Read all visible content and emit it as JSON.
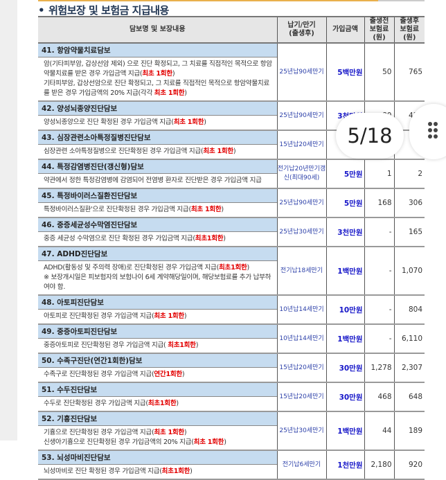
{
  "section_title": "위험보장 및 보험금 지급내용",
  "headers": {
    "name": "담보명 및 보장내용",
    "term": [
      "납기/만기",
      "(출생후)"
    ],
    "amount": "가입금액",
    "pre": [
      "출생전",
      "보험료(원)"
    ],
    "post": [
      "출생후",
      "보험료(원)"
    ]
  },
  "rows": [
    {
      "title": "41. 항암약물치료담보",
      "desc": [
        [
          {
            "t": "암(기타피부암, 갑상선암 제외) 으로 진단 확정되고, 그 치료를 직접적인 목적으로 항암약물치료를 받은 경우 가입금액 지급("
          },
          {
            "t": "최초 1회한",
            "red": true
          },
          {
            "t": ")"
          }
        ],
        [
          {
            "t": "기타피부암, 갑상선암으로 진단 확정되고, 그 치료를 직접적인 목적으로 항암약물치료를 받은 경우 가입금액의 20% 지급(각각 "
          },
          {
            "t": "최초 1회한",
            "red": true
          },
          {
            "t": ")"
          }
        ]
      ],
      "term": "25년납90세만기",
      "amount": "5백만원",
      "pre": "50",
      "post": "765"
    },
    {
      "title": "42. 양성뇌종양진단담보",
      "desc": [
        [
          {
            "t": "양성뇌종양으로 진단 확정된 경우 가입금액 지급("
          },
          {
            "t": "최초 1회한",
            "red": true
          },
          {
            "t": ")"
          }
        ]
      ],
      "term": "25년납90세만기",
      "amount": "3천만원",
      "pre": "80",
      "post": "430"
    },
    {
      "title": "43. 심장관련소아특정질병진단담보",
      "desc": [
        [
          {
            "t": "심장관련 소아특정질병으로 진단확정된 경우 가입금액 지급("
          },
          {
            "t": "최초 1회한",
            "red": true
          },
          {
            "t": ")"
          }
        ]
      ],
      "term": "15년납20세만기",
      "amount": "",
      "pre": "",
      "post": ""
    },
    {
      "title": "44. 특정감염병진단(갱신형)담보",
      "desc": [
        [
          {
            "t": "약관에서 정한 특정감염병에 감염되어 전염병 환자로 진단받은 경우 가입금액 지급"
          }
        ]
      ],
      "term": "전기납20년만기갱신(최대90세)",
      "amount": "5만원",
      "pre": "1",
      "post": "2"
    },
    {
      "title": "45. 특정바이러스질환진단담보",
      "desc": [
        [
          {
            "t": "특정바이러스질환'으로 진단확정된 경우  가입금액 지급("
          },
          {
            "t": "최초 1회한",
            "red": true
          },
          {
            "t": ")"
          }
        ]
      ],
      "term": "25년납90세만기",
      "amount": "5만원",
      "pre": "168",
      "post": "306"
    },
    {
      "title": "46. 중증세균성수막염진단담보",
      "desc": [
        [
          {
            "t": "중증 세균성 수막염으로 진단 확정된 경우 가입금액 지급("
          },
          {
            "t": "최초1회한",
            "red": true
          },
          {
            "t": ")"
          }
        ]
      ],
      "term": "25년납30세만기",
      "amount": "3천만원",
      "pre": "-",
      "post": "165"
    },
    {
      "title": "47. ADHD진단담보",
      "desc": [
        [
          {
            "t": "ADHD(활동성 및 주의력 장애)로 진단확정된 경우 가입금액 지급("
          },
          {
            "t": "최초1회한",
            "red": true
          },
          {
            "t": ")"
          }
        ],
        [
          {
            "t": "※ 보장개시일은 피보험자의 보험나이 6세 계약해당일이며, 해당보험료를 추가 납부하여야 함."
          }
        ]
      ],
      "term": "전기납18세만기",
      "amount": "1백만원",
      "pre": "-",
      "post": "1,070"
    },
    {
      "title": "48. 아토피진단담보",
      "desc": [
        [
          {
            "t": "아토피로 진단확정된 경우 가입금액 지급("
          },
          {
            "t": "최초 1회한",
            "red": true
          },
          {
            "t": ")"
          }
        ]
      ],
      "term": "10년납14세만기",
      "amount": "10만원",
      "pre": "-",
      "post": "804"
    },
    {
      "title": "49. 중증아토피진단담보",
      "desc": [
        [
          {
            "t": "중증아토피로 진단확정된 경우 가입금액 지급( "
          },
          {
            "t": "최초1회한",
            "red": true
          },
          {
            "t": ")"
          }
        ]
      ],
      "term": "10년납14세만기",
      "amount": "1백만원",
      "pre": "-",
      "post": "6,110"
    },
    {
      "title": "50. 수족구진단(연간1회한)담보",
      "desc": [
        [
          {
            "t": "수족구로 진단확정된 경우 가입금액 지급("
          },
          {
            "t": "연간1회한",
            "red": true
          },
          {
            "t": ")"
          }
        ]
      ],
      "term": "15년납20세만기",
      "amount": "30만원",
      "pre": "1,278",
      "post": "2,307"
    },
    {
      "title": "51. 수두진단담보",
      "desc": [
        [
          {
            "t": "수두로 진단확정된 경우 가입금액 지급("
          },
          {
            "t": "최초1회한",
            "red": true
          },
          {
            "t": ")"
          }
        ]
      ],
      "term": "15년납20세만기",
      "amount": "30만원",
      "pre": "468",
      "post": "648"
    },
    {
      "title": "52. 기흉진단담보",
      "desc": [
        [
          {
            "t": "기흉으로 진단확정된 경우 가입금액 지급("
          },
          {
            "t": "최초 1회한",
            "red": true
          },
          {
            "t": ")"
          }
        ],
        [
          {
            "t": "신생아기흉으로 진단확정된 경우 가입금액의 20% 지급("
          },
          {
            "t": "최초 1회한",
            "red": true
          },
          {
            "t": ")"
          }
        ]
      ],
      "term": "25년납30세만기",
      "amount": "1백만원",
      "pre": "44",
      "post": "189"
    },
    {
      "title": "53. 뇌성마비진단담보",
      "desc": [
        [
          {
            "t": "뇌성마비로 진단 확정된 경우 가입금액 지급("
          },
          {
            "t": "최초1회한",
            "red": true
          },
          {
            "t": ")"
          }
        ]
      ],
      "term": "전기납6세만기",
      "amount": "1천만원",
      "pre": "2,180",
      "post": "920"
    }
  ],
  "viewer": {
    "page_counter": "5/18",
    "menu_icon": "grid-dots-icon"
  },
  "colors": {
    "title_row": "#c6dcf0",
    "highlight": "#e20000",
    "amount": "#1515c8",
    "term": "#2b3fa8"
  }
}
